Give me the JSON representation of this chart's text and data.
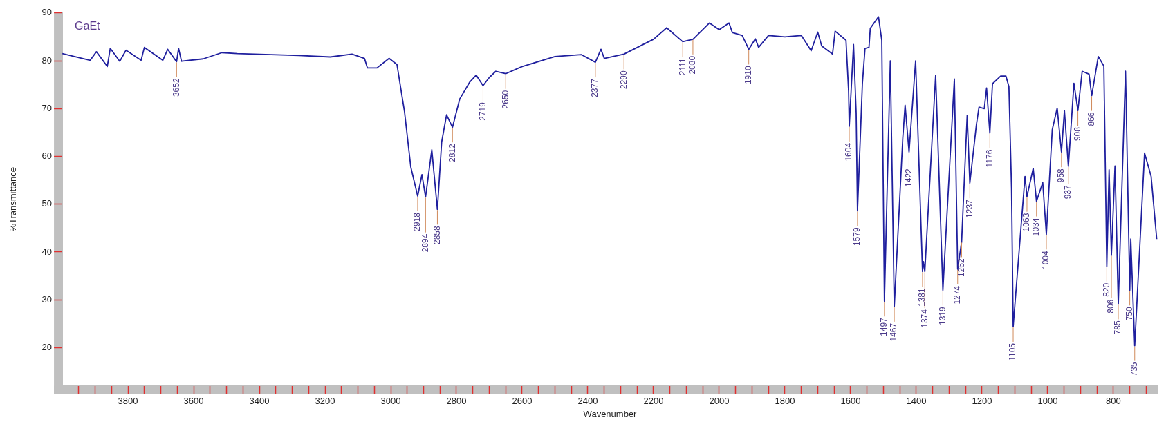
{
  "chart_data": {
    "type": "line",
    "title": "GaEt",
    "xlabel": "Wavenumber",
    "ylabel": "%Transmittance",
    "xlim": [
      4000,
      665
    ],
    "ylim": [
      12,
      90
    ],
    "xticks": [
      {
        "value": 3950,
        "label": null
      },
      {
        "value": 3900,
        "label": null
      },
      {
        "value": 3850,
        "label": null
      },
      3800,
      {
        "value": 3750,
        "label": null
      },
      {
        "value": 3700,
        "label": null
      },
      {
        "value": 3650,
        "label": null
      },
      3600,
      {
        "value": 3550,
        "label": null
      },
      {
        "value": 3500,
        "label": null
      },
      {
        "value": 3450,
        "label": null
      },
      3400,
      {
        "value": 3350,
        "label": null
      },
      {
        "value": 3300,
        "label": null
      },
      {
        "value": 3250,
        "label": null
      },
      3200,
      {
        "value": 3150,
        "label": null
      },
      {
        "value": 3100,
        "label": null
      },
      {
        "value": 3050,
        "label": null
      },
      3000,
      {
        "value": 2950,
        "label": null
      },
      {
        "value": 2900,
        "label": null
      },
      {
        "value": 2850,
        "label": null
      },
      2800,
      {
        "value": 2750,
        "label": null
      },
      {
        "value": 2700,
        "label": null
      },
      {
        "value": 2650,
        "label": null
      },
      2600,
      {
        "value": 2550,
        "label": null
      },
      {
        "value": 2500,
        "label": null
      },
      {
        "value": 2450,
        "label": null
      },
      2400,
      {
        "value": 2350,
        "label": null
      },
      {
        "value": 2300,
        "label": null
      },
      {
        "value": 2250,
        "label": null
      },
      2200,
      {
        "value": 2150,
        "label": null
      },
      {
        "value": 2100,
        "label": null
      },
      {
        "value": 2050,
        "label": null
      },
      2000,
      {
        "value": 1950,
        "label": null
      },
      {
        "value": 1900,
        "label": null
      },
      {
        "value": 1850,
        "label": null
      },
      1800,
      {
        "value": 1750,
        "label": null
      },
      {
        "value": 1700,
        "label": null
      },
      {
        "value": 1650,
        "label": null
      },
      1600,
      {
        "value": 1550,
        "label": null
      },
      {
        "value": 1500,
        "label": null
      },
      {
        "value": 1450,
        "label": null
      },
      1400,
      {
        "value": 1350,
        "label": null
      },
      {
        "value": 1300,
        "label": null
      },
      {
        "value": 1250,
        "label": null
      },
      1200,
      {
        "value": 1150,
        "label": null
      },
      {
        "value": 1100,
        "label": null
      },
      {
        "value": 1050,
        "label": null
      },
      1000,
      {
        "value": 950,
        "label": null
      },
      {
        "value": 900,
        "label": null
      },
      {
        "value": 850,
        "label": null
      },
      800,
      {
        "value": 750,
        "label": null
      },
      {
        "value": 700,
        "label": null
      }
    ],
    "yticks": [
      20,
      30,
      40,
      50,
      60,
      70,
      80,
      90
    ],
    "marker": "none",
    "series": [
      {
        "color": "#1f1f9e",
        "x": [
          4000,
          3915,
          3896,
          3863,
          3854,
          3825,
          3806,
          3760,
          3750,
          3694,
          3679,
          3652,
          3646,
          3637,
          3571,
          3514,
          3467,
          3279,
          3184,
          3118,
          3080,
          3071,
          3042,
          3005,
          2981,
          2958,
          2939,
          2918,
          2905,
          2894,
          2875,
          2858,
          2845,
          2830,
          2812,
          2790,
          2760,
          2740,
          2719,
          2700,
          2680,
          2650,
          2600,
          2500,
          2420,
          2377,
          2360,
          2350,
          2290,
          2200,
          2160,
          2111,
          2080,
          2030,
          2000,
          1970,
          1960,
          1930,
          1910,
          1890,
          1880,
          1850,
          1800,
          1750,
          1720,
          1700,
          1688,
          1655,
          1647,
          1614,
          1606,
          1604,
          1591,
          1583,
          1579,
          1564,
          1556,
          1544,
          1540,
          1515,
          1505,
          1497,
          1479,
          1467,
          1441,
          1434,
          1422,
          1402,
          1381,
          1378,
          1374,
          1341,
          1319,
          1284,
          1274,
          1262,
          1245,
          1237,
          1217,
          1209,
          1193,
          1186,
          1176,
          1168,
          1143,
          1127,
          1118,
          1110,
          1105,
          1069,
          1063,
          1044,
          1034,
          1015,
          1004,
          986,
          971,
          958,
          949,
          937,
          920,
          908,
          895,
          874,
          866,
          846,
          829,
          820,
          813,
          806,
          795,
          785,
          763,
          750,
          747,
          735,
          705,
          685,
          668
        ],
        "values": [
          81.5,
          80.1,
          81.9,
          78.8,
          82.6,
          79.9,
          82.2,
          80.1,
          82.8,
          80.1,
          82.4,
          79.8,
          82.6,
          79.9,
          80.4,
          81.7,
          81.5,
          81.1,
          80.8,
          81.4,
          80.5,
          78.5,
          78.5,
          80.5,
          79.2,
          69.3,
          57.8,
          51.7,
          56.2,
          51.5,
          61.4,
          48.9,
          63,
          68.7,
          66.1,
          72,
          75.5,
          77,
          74.8,
          76.5,
          77.8,
          77.3,
          78.8,
          80.9,
          81.3,
          79.7,
          82.4,
          80.5,
          81.4,
          84.5,
          86.9,
          84,
          84.5,
          87.9,
          86.5,
          87.9,
          85.9,
          85.3,
          82.4,
          84.6,
          82.8,
          85.3,
          85,
          85.3,
          82.1,
          86,
          83.1,
          81.4,
          86.2,
          84.3,
          73.6,
          66.3,
          83.4,
          69.1,
          48.6,
          75.3,
          82.6,
          82.8,
          86.8,
          89.2,
          84.3,
          29.7,
          80,
          28.6,
          63.9,
          70.7,
          60.9,
          80,
          35.9,
          38,
          35.9,
          77,
          32,
          76.2,
          36.4,
          42.1,
          68.6,
          54.4,
          66.6,
          70.3,
          70,
          74.3,
          64.9,
          75.2,
          76.8,
          76.8,
          74.6,
          53.3,
          24.4,
          55.8,
          51.6,
          57.5,
          50.6,
          54.5,
          43.7,
          65.6,
          70.1,
          60.9,
          69.6,
          57.9,
          75.3,
          69.6,
          77.8,
          77.2,
          72.7,
          80.9,
          78.9,
          37,
          57.2,
          39.3,
          58,
          29.1,
          77.8,
          32,
          42.7,
          20.4,
          60.7,
          55.8,
          42.7
        ]
      }
    ],
    "annotations": [
      {
        "text": "3652",
        "x": 3652,
        "y": 79.8
      },
      {
        "text": "2918",
        "x": 2918,
        "y": 51.7
      },
      {
        "text": "2894",
        "x": 2894,
        "y": 51.5
      },
      {
        "text": "2858",
        "x": 2858,
        "y": 48.9
      },
      {
        "text": "2812",
        "x": 2812,
        "y": 66.1
      },
      {
        "text": "2719",
        "x": 2719,
        "y": 74.8
      },
      {
        "text": "2650",
        "x": 2650,
        "y": 77.3
      },
      {
        "text": "2377",
        "x": 2377,
        "y": 79.7
      },
      {
        "text": "2290",
        "x": 2290,
        "y": 81.4
      },
      {
        "text": "2111",
        "x": 2111,
        "y": 84
      },
      {
        "text": "2080",
        "x": 2080,
        "y": 84.5
      },
      {
        "text": "1910",
        "x": 1910,
        "y": 82.4
      },
      {
        "text": "1604",
        "x": 1604,
        "y": 66.3
      },
      {
        "text": "1579",
        "x": 1579,
        "y": 48.6
      },
      {
        "text": "1497",
        "x": 1497,
        "y": 29.7
      },
      {
        "text": "1467",
        "x": 1467,
        "y": 28.6
      },
      {
        "text": "1422",
        "x": 1422,
        "y": 60.9
      },
      {
        "text": "1381",
        "x": 1381,
        "y": 35.9
      },
      {
        "text": "1374",
        "x": 1374,
        "y": 35.9
      },
      {
        "text": "1319",
        "x": 1319,
        "y": 32
      },
      {
        "text": "1274",
        "x": 1274,
        "y": 36.4
      },
      {
        "text": "1262",
        "x": 1262,
        "y": 42.1
      },
      {
        "text": "1237",
        "x": 1237,
        "y": 54.4
      },
      {
        "text": "1176",
        "x": 1176,
        "y": 64.9
      },
      {
        "text": "1105",
        "x": 1105,
        "y": 24.4
      },
      {
        "text": "1063",
        "x": 1063,
        "y": 51.6
      },
      {
        "text": "1034",
        "x": 1034,
        "y": 50.6
      },
      {
        "text": "1004",
        "x": 1004,
        "y": 43.7
      },
      {
        "text": "958",
        "x": 958,
        "y": 60.9
      },
      {
        "text": "937",
        "x": 937,
        "y": 57.9
      },
      {
        "text": "908",
        "x": 908,
        "y": 69.6
      },
      {
        "text": "866",
        "x": 866,
        "y": 72.7
      },
      {
        "text": "820",
        "x": 820,
        "y": 37
      },
      {
        "text": "806",
        "x": 806,
        "y": 39.3
      },
      {
        "text": "785",
        "x": 785,
        "y": 29.1
      },
      {
        "text": "750",
        "x": 750,
        "y": 32
      },
      {
        "text": "735",
        "x": 735,
        "y": 20.4
      }
    ]
  }
}
